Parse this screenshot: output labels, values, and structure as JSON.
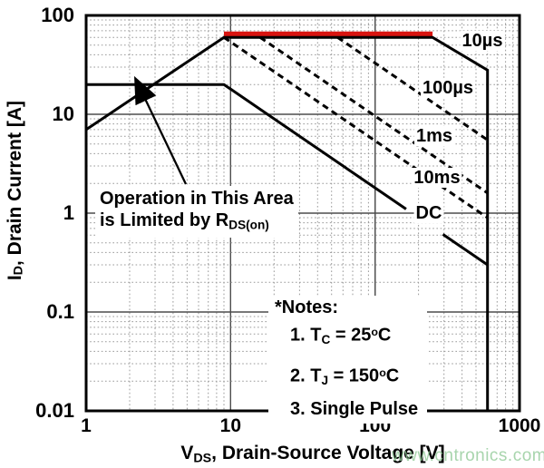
{
  "watermark": {
    "text": "www.cntronics.com",
    "color": "rgba(146,203,152,0.8)"
  },
  "annotation": {
    "line1": "Operation in This Area",
    "line2_pre": "is Limited by R",
    "line2_sub": "DS(on)"
  },
  "notes": {
    "header": "*Notes:",
    "items": [
      {
        "pre": "1. T",
        "sub": "C",
        "mid": " = 25",
        "sup": "o",
        "post": "C"
      },
      {
        "pre": "2. T",
        "sub": "J",
        "mid": " = 150",
        "sup": "o",
        "post": "C"
      },
      {
        "pre": "3. Single Pulse",
        "sub": "",
        "mid": "",
        "sup": "",
        "post": ""
      }
    ]
  },
  "chart_data": {
    "type": "line",
    "title": "",
    "x_axis": {
      "scale": "log",
      "min": 1,
      "max": 1000,
      "label_pre": "V",
      "label_sub": "DS",
      "label_post": ", Drain-Source Voltage [V]",
      "ticks": [
        {
          "v": 1,
          "label": "1"
        },
        {
          "v": 10,
          "label": "10"
        },
        {
          "v": 100,
          "label": "100"
        },
        {
          "v": 1000,
          "label": "1000"
        }
      ]
    },
    "y_axis": {
      "scale": "log",
      "min": 0.01,
      "max": 100,
      "label_pre": "I",
      "label_sub": "D",
      "label_post": ", Drain Current [A]",
      "ticks": [
        {
          "v": 100,
          "label": "100"
        },
        {
          "v": 10,
          "label": "10"
        },
        {
          "v": 1,
          "label": "1"
        },
        {
          "v": 0.1,
          "label": "0.1"
        },
        {
          "v": 0.01,
          "label": "0.01"
        }
      ]
    },
    "grid": {
      "minor": true,
      "minor_color": "#999999",
      "major_color": "#4d4d4d"
    },
    "series": [
      {
        "name": "10µs",
        "style": "solid",
        "color": "#000000",
        "label_at": [
          555,
          55
        ],
        "segments": [
          [
            [
              1,
              7
            ],
            [
              9,
              60
            ],
            [
              250,
              60
            ],
            [
              600,
              28
            ],
            [
              600,
              0.01
            ]
          ]
        ]
      },
      {
        "name": "100µs",
        "style": "dashed",
        "color": "#000000",
        "label_at": [
          320,
          18.5
        ],
        "segments": [
          [
            [
              55,
              60
            ],
            [
              600,
              5.5
            ]
          ]
        ]
      },
      {
        "name": "1ms",
        "style": "dashed",
        "color": "#000000",
        "label_at": [
          258,
          6.0
        ],
        "segments": [
          [
            [
              16,
              60
            ],
            [
              600,
              1.6
            ]
          ]
        ]
      },
      {
        "name": "10ms",
        "style": "dashed",
        "color": "#000000",
        "label_at": [
          270,
          2.3
        ],
        "segments": [
          [
            [
              9,
              60
            ],
            [
              195,
              2.77
            ]
          ],
          [
            [
              285,
              1.89
            ],
            [
              600,
              0.9
            ]
          ]
        ]
      },
      {
        "name": "DC",
        "style": "solid",
        "color": "#000000",
        "label_at": [
          236,
          1.0
        ],
        "segments": [
          [
            [
              1,
              20
            ],
            [
              9,
              20
            ],
            [
              164,
              1.1
            ]
          ],
          [
            [
              295,
              0.61
            ],
            [
              600,
              0.3
            ]
          ]
        ]
      }
    ],
    "highlight": {
      "color": "#d81410",
      "from": [
        9,
        60
      ],
      "to": [
        250,
        60
      ]
    }
  }
}
